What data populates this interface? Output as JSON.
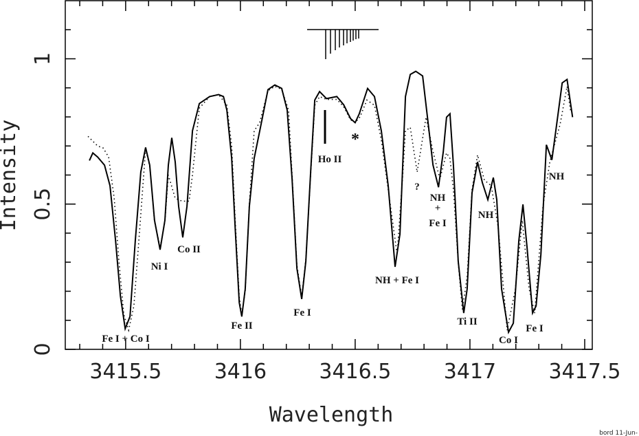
{
  "chart_data": {
    "type": "line",
    "xlabel": "Wavelength",
    "ylabel": "Intensity",
    "footer": "bord 11-Jun-",
    "xlim": [
      3415.237,
      3417.533
    ],
    "ylim": [
      0,
      1.2
    ],
    "xticks": [
      3415.5,
      3416,
      3416.5,
      3417,
      3417.5
    ],
    "xminorticks": [
      3415.3,
      3415.4,
      3415.6,
      3415.7,
      3415.8,
      3415.9,
      3416.1,
      3416.2,
      3416.3,
      3416.4,
      3416.6,
      3416.7,
      3416.8,
      3416.9,
      3417.1,
      3417.2,
      3417.3,
      3417.4
    ],
    "yticks": [
      0,
      0.5,
      1
    ],
    "yminorticks": [
      0.1,
      0.2,
      0.3,
      0.4,
      0.6,
      0.7,
      0.8,
      0.9,
      1.1
    ],
    "series": [
      {
        "style": "solid",
        "color": "#000000",
        "x": [
          3415.342,
          3415.357,
          3415.378,
          3415.408,
          3415.432,
          3415.456,
          3415.477,
          3415.498,
          3415.519,
          3415.542,
          3415.566,
          3415.587,
          3415.605,
          3415.626,
          3415.65,
          3415.671,
          3415.686,
          3415.701,
          3415.716,
          3415.731,
          3415.749,
          3415.767,
          3415.791,
          3415.821,
          3415.866,
          3415.905,
          3415.926,
          3415.941,
          3415.962,
          3415.977,
          3415.995,
          3416.006,
          3416.021,
          3416.039,
          3416.06,
          3416.09,
          3416.12,
          3416.15,
          3416.18,
          3416.204,
          3416.225,
          3416.246,
          3416.267,
          3416.285,
          3416.306,
          3416.324,
          3416.345,
          3416.375,
          3416.42,
          3416.45,
          3416.48,
          3416.5,
          3416.518,
          3416.554,
          3416.584,
          3416.614,
          3416.644,
          3416.674,
          3416.695,
          3416.719,
          3416.74,
          3416.764,
          3416.794,
          3416.815,
          3416.839,
          3416.863,
          3416.884,
          3416.898,
          3416.913,
          3416.928,
          3416.949,
          3416.973,
          3416.988,
          3417.009,
          3417.033,
          3417.054,
          3417.078,
          3417.102,
          3417.117,
          3417.138,
          3417.168,
          3417.189,
          3417.213,
          3417.231,
          3417.249,
          3417.273,
          3417.288,
          3417.309,
          3417.333,
          3417.357,
          3417.378,
          3417.402,
          3417.423,
          3417.447
        ],
        "values": [
          0.65,
          0.676,
          0.662,
          0.634,
          0.563,
          0.374,
          0.184,
          0.071,
          0.113,
          0.374,
          0.61,
          0.695,
          0.634,
          0.444,
          0.343,
          0.444,
          0.634,
          0.728,
          0.645,
          0.492,
          0.385,
          0.492,
          0.752,
          0.846,
          0.87,
          0.877,
          0.87,
          0.823,
          0.657,
          0.421,
          0.161,
          0.113,
          0.208,
          0.492,
          0.657,
          0.775,
          0.894,
          0.91,
          0.898,
          0.823,
          0.586,
          0.279,
          0.173,
          0.303,
          0.61,
          0.858,
          0.887,
          0.863,
          0.87,
          0.842,
          0.794,
          0.78,
          0.811,
          0.898,
          0.87,
          0.752,
          0.563,
          0.284,
          0.397,
          0.87,
          0.946,
          0.957,
          0.941,
          0.799,
          0.634,
          0.558,
          0.681,
          0.799,
          0.811,
          0.634,
          0.303,
          0.125,
          0.208,
          0.539,
          0.645,
          0.574,
          0.515,
          0.591,
          0.515,
          0.208,
          0.059,
          0.09,
          0.374,
          0.499,
          0.35,
          0.125,
          0.149,
          0.326,
          0.704,
          0.652,
          0.775,
          0.917,
          0.929,
          0.799
        ]
      },
      {
        "style": "dotted",
        "color": "#000000",
        "x": [
          3415.336,
          3415.378,
          3415.402,
          3415.426,
          3415.45,
          3415.471,
          3415.492,
          3415.513,
          3415.536,
          3415.56,
          3415.587,
          3415.605,
          3415.626,
          3415.65,
          3415.671,
          3415.686,
          3415.716,
          3415.746,
          3415.776,
          3415.791,
          3415.821,
          3415.866,
          3415.905,
          3415.941,
          3415.962,
          3415.977,
          3415.995,
          3416.006,
          3416.021,
          3416.039,
          3416.06,
          3416.084,
          3416.12,
          3416.15,
          3416.18,
          3416.21,
          3416.225,
          3416.246,
          3416.267,
          3416.285,
          3416.306,
          3416.324,
          3416.345,
          3416.375,
          3416.42,
          3416.45,
          3416.48,
          3416.5,
          3416.521,
          3416.551,
          3416.584,
          3416.614,
          3416.644,
          3416.683,
          3416.707,
          3416.719,
          3416.74,
          3416.77,
          3416.809,
          3416.839,
          3416.869,
          3416.898,
          3416.913,
          3416.928,
          3416.949,
          3416.967,
          3416.988,
          3417.009,
          3417.033,
          3417.063,
          3417.093,
          3417.123,
          3417.162,
          3417.198,
          3417.228,
          3417.258,
          3417.282,
          3417.318,
          3417.348,
          3417.393,
          3417.423,
          3417.438
        ],
        "values": [
          0.733,
          0.7,
          0.693,
          0.662,
          0.52,
          0.3,
          0.12,
          0.066,
          0.15,
          0.4,
          0.69,
          0.63,
          0.44,
          0.35,
          0.44,
          0.6,
          0.52,
          0.51,
          0.51,
          0.6,
          0.83,
          0.87,
          0.877,
          0.84,
          0.7,
          0.45,
          0.18,
          0.12,
          0.2,
          0.5,
          0.752,
          0.78,
          0.89,
          0.905,
          0.895,
          0.823,
          0.6,
          0.29,
          0.18,
          0.31,
          0.6,
          0.84,
          0.87,
          0.86,
          0.86,
          0.835,
          0.79,
          0.78,
          0.8,
          0.858,
          0.84,
          0.72,
          0.55,
          0.326,
          0.6,
          0.752,
          0.764,
          0.61,
          0.799,
          0.681,
          0.586,
          0.676,
          0.657,
          0.55,
          0.3,
          0.137,
          0.25,
          0.55,
          0.669,
          0.582,
          0.563,
          0.421,
          0.066,
          0.208,
          0.444,
          0.208,
          0.125,
          0.492,
          0.645,
          0.775,
          0.905,
          0.823
        ]
      }
    ],
    "annotations": [
      "Fe I + Co I",
      "Ni I",
      "Co II",
      "Fe II",
      "Fe I",
      "Ho II",
      "*",
      "NH + Fe I",
      "?",
      "NH",
      "+",
      "Fe I",
      "NH",
      "Ti II",
      "Co I",
      "Fe I",
      "NH"
    ]
  }
}
